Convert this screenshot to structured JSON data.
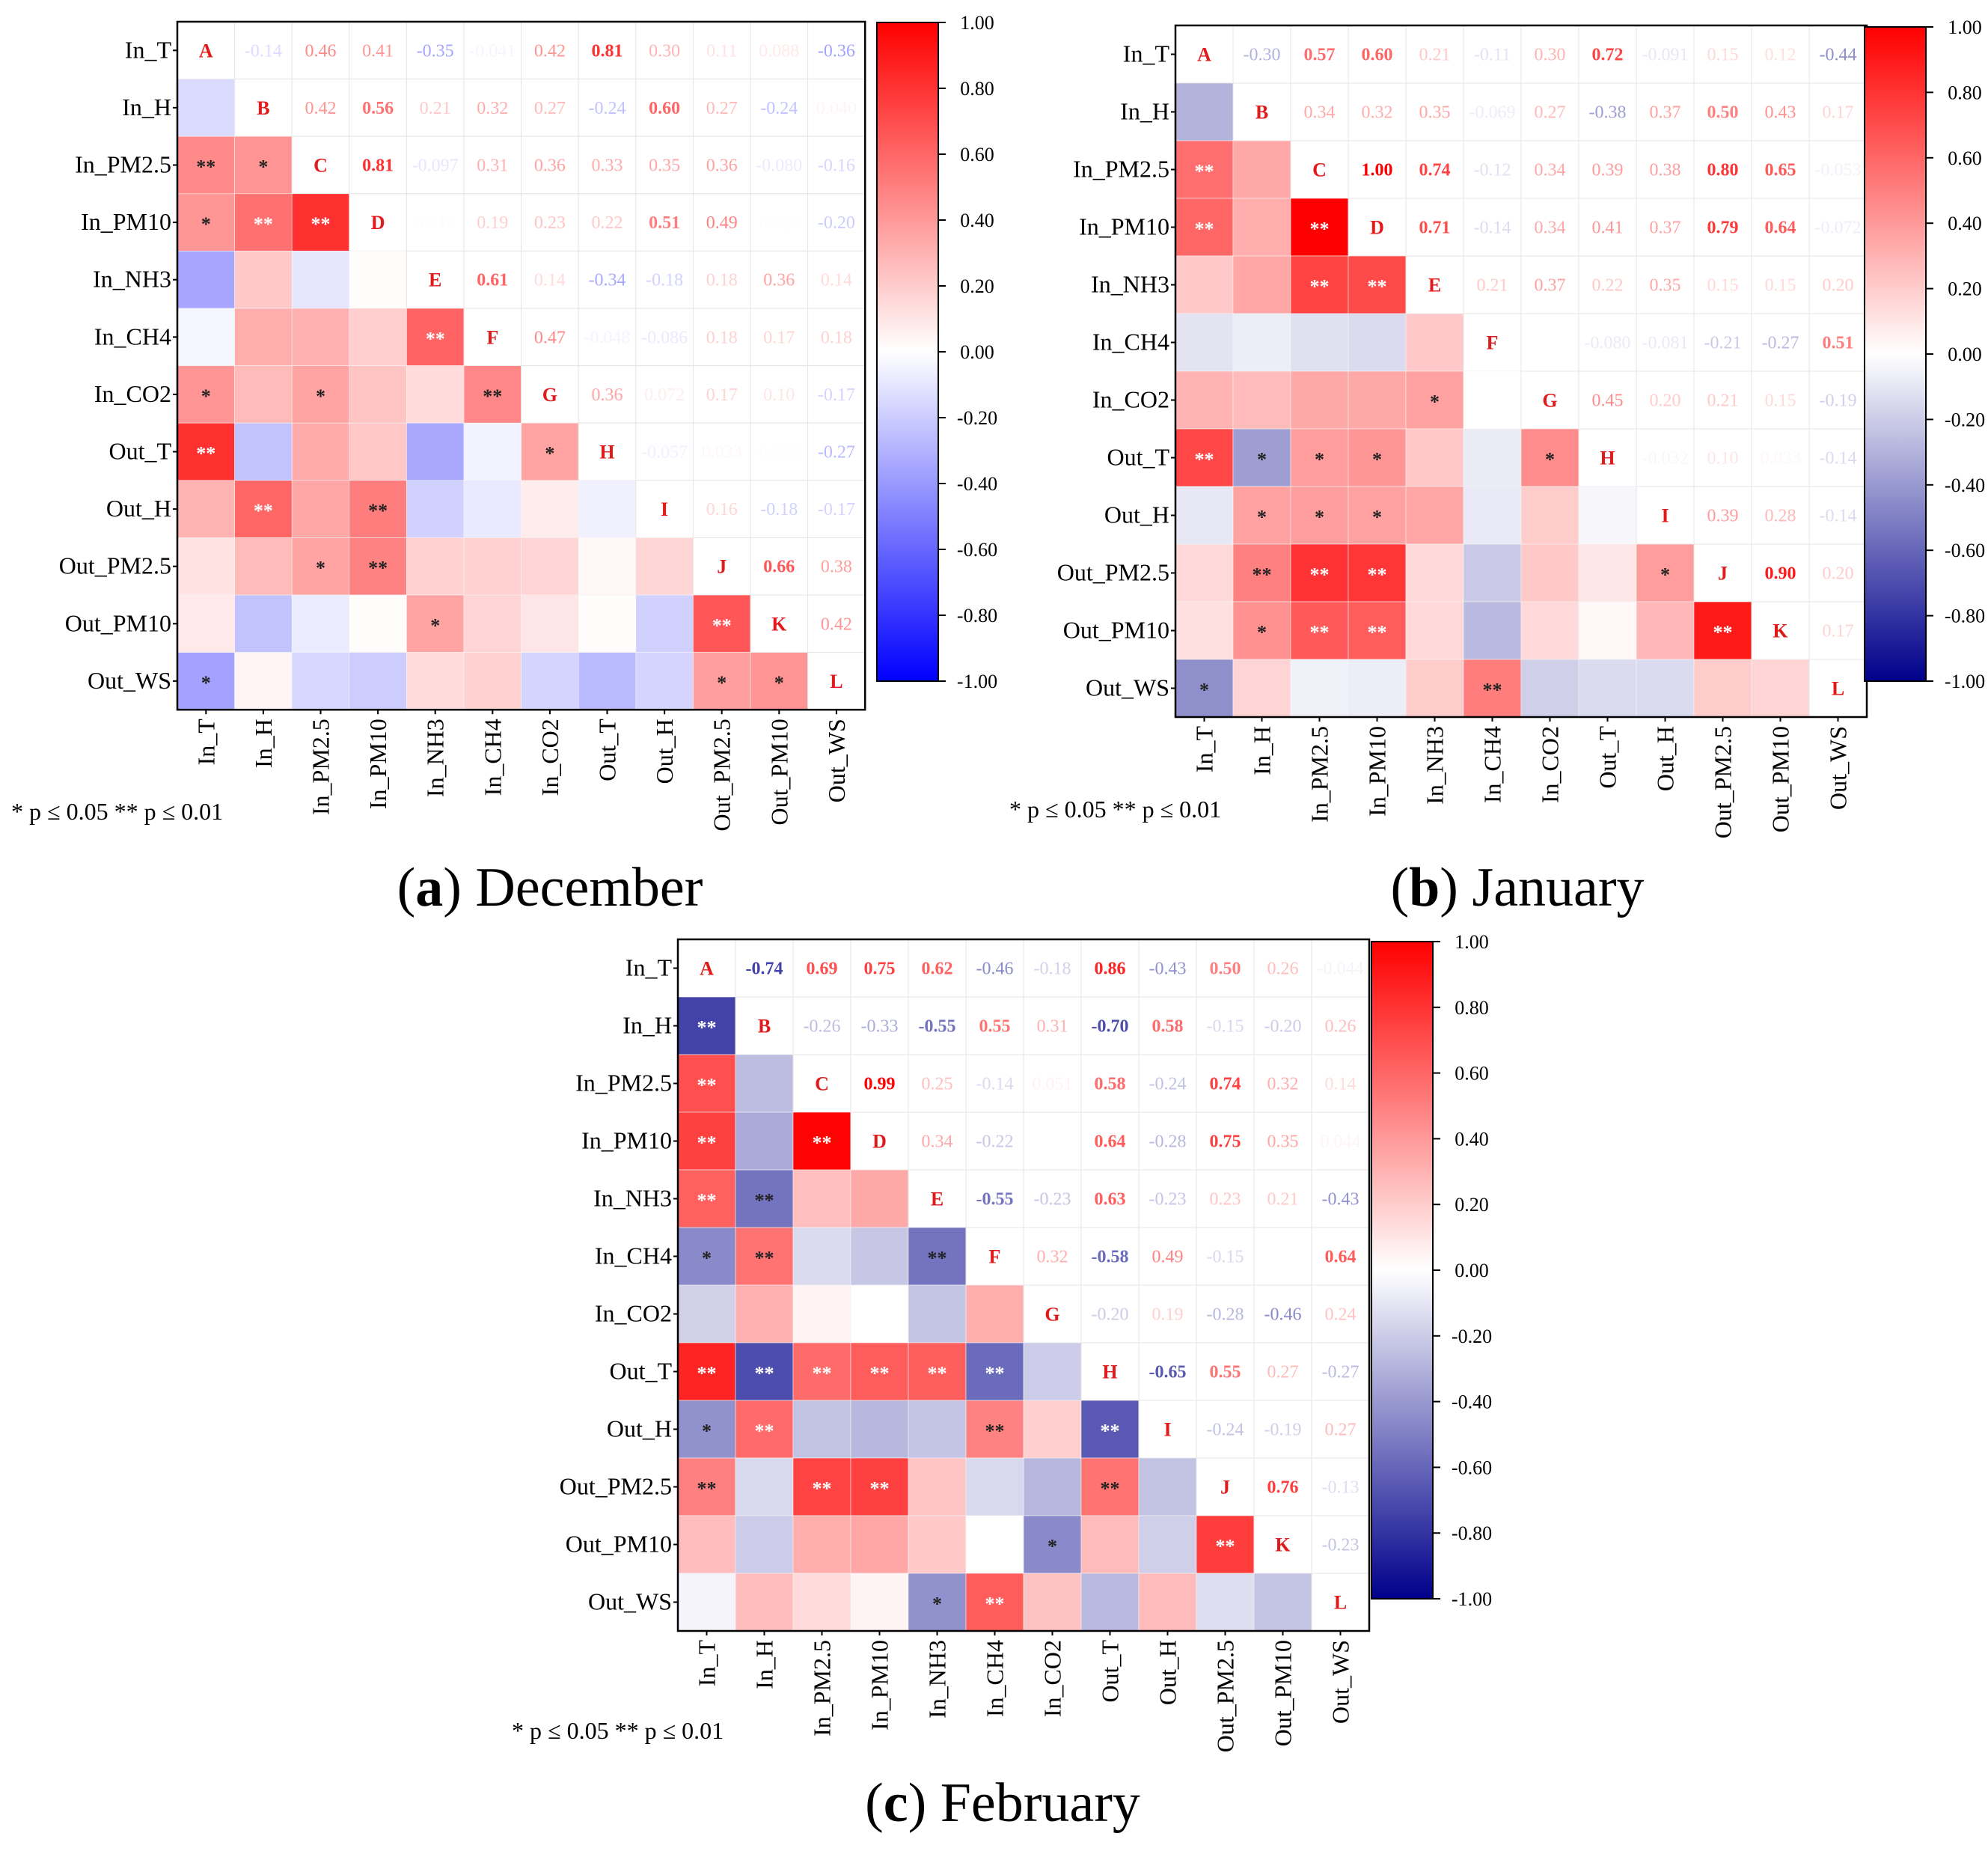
{
  "significance_note": "* p ≤ 0.05   ** p ≤ 0.01",
  "colorbar": {
    "ticks": [
      "1.00",
      "0.80",
      "0.60",
      "0.40",
      "0.20",
      "0.00",
      "-0.20",
      "-0.40",
      "-0.60",
      "-0.80",
      "-1.00"
    ],
    "colors": {
      "positive": "#ff0000",
      "zero": "#ffffff",
      "negative_a": "#0000ff",
      "negative_bc": "#00008b"
    }
  },
  "chart_data": [
    {
      "type": "heatmap",
      "caption_letter": "a",
      "caption_text": " December",
      "variables": [
        "In_T",
        "In_H",
        "In_PM2.5",
        "In_PM10",
        "In_NH3",
        "In_CH4",
        "In_CO2",
        "Out_T",
        "Out_H",
        "Out_PM2.5",
        "Out_PM10",
        "Out_WS"
      ],
      "diagonal_labels": [
        "A",
        "B",
        "C",
        "D",
        "E",
        "F",
        "G",
        "H",
        "I",
        "J",
        "K",
        "L"
      ],
      "clim": [
        -1,
        1
      ],
      "negative_color": "#0000ff",
      "upper_values": [
        [
          null,
          -0.14,
          0.46,
          0.41,
          -0.35,
          -0.041,
          0.42,
          0.81,
          0.3,
          0.11,
          0.088,
          -0.36
        ],
        [
          null,
          null,
          0.42,
          0.56,
          0.21,
          0.32,
          0.27,
          -0.24,
          0.6,
          0.27,
          -0.24,
          0.04
        ],
        [
          null,
          null,
          null,
          0.81,
          -0.097,
          0.31,
          0.36,
          0.33,
          0.35,
          0.36,
          -0.08,
          -0.16
        ],
        [
          null,
          null,
          null,
          null,
          0.01,
          0.19,
          0.23,
          0.22,
          0.51,
          0.49,
          0.01,
          -0.2
        ],
        [
          null,
          null,
          null,
          null,
          null,
          0.61,
          0.14,
          -0.34,
          -0.18,
          0.18,
          0.36,
          0.14
        ],
        [
          null,
          null,
          null,
          null,
          null,
          null,
          0.47,
          -0.048,
          -0.086,
          0.18,
          0.17,
          0.18
        ],
        [
          null,
          null,
          null,
          null,
          null,
          null,
          null,
          0.36,
          0.072,
          0.17,
          0.1,
          -0.17
        ],
        [
          null,
          null,
          null,
          null,
          null,
          null,
          null,
          null,
          -0.057,
          0.033,
          0.01,
          -0.27
        ],
        [
          null,
          null,
          null,
          null,
          null,
          null,
          null,
          null,
          null,
          0.16,
          -0.18,
          -0.17
        ],
        [
          null,
          null,
          null,
          null,
          null,
          null,
          null,
          null,
          null,
          null,
          0.66,
          0.38
        ],
        [
          null,
          null,
          null,
          null,
          null,
          null,
          null,
          null,
          null,
          null,
          null,
          0.42
        ],
        [
          null,
          null,
          null,
          null,
          null,
          null,
          null,
          null,
          null,
          null,
          null,
          null
        ]
      ],
      "lower_stars": [
        [
          "",
          "",
          "",
          "",
          "",
          "",
          "",
          "",
          "",
          "",
          "",
          ""
        ],
        [
          "",
          "",
          "",
          "",
          "",
          "",
          "",
          "",
          "",
          "",
          "",
          ""
        ],
        [
          "**",
          "*",
          "",
          "",
          "",
          "",
          "",
          "",
          "",
          "",
          "",
          ""
        ],
        [
          "*",
          "**",
          "**",
          "",
          "",
          "",
          "",
          "",
          "",
          "",
          "",
          ""
        ],
        [
          "",
          "",
          "",
          "",
          "",
          "",
          "",
          "",
          "",
          "",
          "",
          ""
        ],
        [
          "",
          "",
          "",
          "",
          "**",
          "",
          "",
          "",
          "",
          "",
          "",
          ""
        ],
        [
          "*",
          "",
          "*",
          "",
          "",
          "**",
          "",
          "",
          "",
          "",
          "",
          ""
        ],
        [
          "**",
          "",
          "",
          "",
          "",
          "",
          "*",
          "",
          "",
          "",
          "",
          ""
        ],
        [
          "",
          "**",
          "",
          "**",
          "",
          "",
          "",
          "",
          "",
          "",
          "",
          ""
        ],
        [
          "",
          "",
          "*",
          "**",
          "",
          "",
          "",
          "",
          "",
          "",
          "",
          ""
        ],
        [
          "",
          "",
          "",
          "",
          "*",
          "",
          "",
          "",
          "",
          "**",
          "",
          ""
        ],
        [
          "*",
          "",
          "",
          "",
          "",
          "",
          "",
          "",
          "",
          "*",
          "*",
          ""
        ]
      ]
    },
    {
      "type": "heatmap",
      "caption_letter": "b",
      "caption_text": " January",
      "variables": [
        "In_T",
        "In_H",
        "In_PM2.5",
        "In_PM10",
        "In_NH3",
        "In_CH4",
        "In_CO2",
        "Out_T",
        "Out_H",
        "Out_PM2.5",
        "Out_PM10",
        "Out_WS"
      ],
      "diagonal_labels": [
        "A",
        "B",
        "C",
        "D",
        "E",
        "F",
        "G",
        "H",
        "I",
        "J",
        "K",
        "L"
      ],
      "clim": [
        -1,
        1
      ],
      "negative_color": "#00008b",
      "upper_values": [
        [
          null,
          -0.3,
          0.57,
          0.6,
          0.21,
          -0.11,
          0.3,
          0.72,
          -0.091,
          0.15,
          0.12,
          -0.44
        ],
        [
          null,
          null,
          0.34,
          0.32,
          0.35,
          -0.069,
          0.27,
          -0.38,
          0.37,
          0.5,
          0.43,
          0.17
        ],
        [
          null,
          null,
          null,
          1.0,
          0.74,
          -0.12,
          0.34,
          0.39,
          0.38,
          0.8,
          0.65,
          -0.053
        ],
        [
          null,
          null,
          null,
          null,
          0.71,
          -0.14,
          0.34,
          0.41,
          0.37,
          0.79,
          0.64,
          -0.072
        ],
        [
          null,
          null,
          null,
          null,
          null,
          0.21,
          0.37,
          0.22,
          0.35,
          0.15,
          0.15,
          0.2
        ],
        [
          null,
          null,
          null,
          null,
          null,
          null,
          0.0,
          -0.08,
          -0.081,
          -0.21,
          -0.27,
          0.51
        ],
        [
          null,
          null,
          null,
          null,
          null,
          null,
          null,
          0.45,
          0.2,
          0.21,
          0.15,
          -0.19
        ],
        [
          null,
          null,
          null,
          null,
          null,
          null,
          null,
          null,
          -0.032,
          0.1,
          0.033,
          -0.14
        ],
        [
          null,
          null,
          null,
          null,
          null,
          null,
          null,
          null,
          null,
          0.39,
          0.28,
          -0.14
        ],
        [
          null,
          null,
          null,
          null,
          null,
          null,
          null,
          null,
          null,
          null,
          0.9,
          0.2
        ],
        [
          null,
          null,
          null,
          null,
          null,
          null,
          null,
          null,
          null,
          null,
          null,
          0.17
        ],
        [
          null,
          null,
          null,
          null,
          null,
          null,
          null,
          null,
          null,
          null,
          null,
          null
        ]
      ],
      "lower_stars": [
        [
          "",
          "",
          "",
          "",
          "",
          "",
          "",
          "",
          "",
          "",
          "",
          ""
        ],
        [
          "",
          "",
          "",
          "",
          "",
          "",
          "",
          "",
          "",
          "",
          "",
          ""
        ],
        [
          "**",
          "",
          "",
          "",
          "",
          "",
          "",
          "",
          "",
          "",
          "",
          ""
        ],
        [
          "**",
          "",
          "**",
          "",
          "",
          "",
          "",
          "",
          "",
          "",
          "",
          ""
        ],
        [
          "",
          "",
          "**",
          "**",
          "",
          "",
          "",
          "",
          "",
          "",
          "",
          ""
        ],
        [
          "",
          "",
          "",
          "",
          "",
          "",
          "",
          "",
          "",
          "",
          "",
          ""
        ],
        [
          "",
          "",
          "",
          "",
          "*",
          "",
          "",
          "",
          "",
          "",
          "",
          ""
        ],
        [
          "**",
          "*",
          "*",
          "*",
          "",
          "",
          "*",
          "",
          "",
          "",
          "",
          ""
        ],
        [
          "",
          "*",
          "*",
          "*",
          "",
          "",
          "",
          "",
          "",
          "",
          "",
          ""
        ],
        [
          "",
          "**",
          "**",
          "**",
          "",
          "",
          "",
          "",
          "*",
          "",
          "",
          ""
        ],
        [
          "",
          "*",
          "**",
          "**",
          "",
          "",
          "",
          "",
          "",
          "**",
          "",
          ""
        ],
        [
          "*",
          "",
          "",
          "",
          "",
          "**",
          "",
          "",
          "",
          "",
          "",
          ""
        ]
      ]
    },
    {
      "type": "heatmap",
      "caption_letter": "c",
      "caption_text": " February",
      "variables": [
        "In_T",
        "In_H",
        "In_PM2.5",
        "In_PM10",
        "In_NH3",
        "In_CH4",
        "In_CO2",
        "Out_T",
        "Out_H",
        "Out_PM2.5",
        "Out_PM10",
        "Out_WS"
      ],
      "diagonal_labels": [
        "A",
        "B",
        "C",
        "D",
        "E",
        "F",
        "G",
        "H",
        "I",
        "J",
        "K",
        "L"
      ],
      "clim": [
        -1,
        1
      ],
      "negative_color": "#00008b",
      "upper_values": [
        [
          null,
          -0.74,
          0.69,
          0.75,
          0.62,
          -0.46,
          -0.18,
          0.86,
          -0.43,
          0.5,
          0.26,
          -0.044
        ],
        [
          null,
          null,
          -0.26,
          -0.33,
          -0.55,
          0.55,
          0.31,
          -0.7,
          0.58,
          -0.15,
          -0.2,
          0.26
        ],
        [
          null,
          null,
          null,
          0.99,
          0.25,
          -0.14,
          0.051,
          0.58,
          -0.24,
          0.74,
          0.32,
          0.14
        ],
        [
          null,
          null,
          null,
          null,
          0.34,
          -0.22,
          0.0,
          0.64,
          -0.28,
          0.75,
          0.35,
          0.044
        ],
        [
          null,
          null,
          null,
          null,
          null,
          -0.55,
          -0.23,
          0.63,
          -0.23,
          0.23,
          0.21,
          -0.43
        ],
        [
          null,
          null,
          null,
          null,
          null,
          null,
          0.32,
          -0.58,
          0.49,
          -0.15,
          0.0,
          0.64
        ],
        [
          null,
          null,
          null,
          null,
          null,
          null,
          null,
          -0.2,
          0.19,
          -0.28,
          -0.46,
          0.24
        ],
        [
          null,
          null,
          null,
          null,
          null,
          null,
          null,
          null,
          -0.65,
          0.55,
          0.27,
          -0.27
        ],
        [
          null,
          null,
          null,
          null,
          null,
          null,
          null,
          null,
          null,
          -0.24,
          -0.19,
          0.27
        ],
        [
          null,
          null,
          null,
          null,
          null,
          null,
          null,
          null,
          null,
          null,
          0.76,
          -0.13
        ],
        [
          null,
          null,
          null,
          null,
          null,
          null,
          null,
          null,
          null,
          null,
          null,
          -0.23
        ],
        [
          null,
          null,
          null,
          null,
          null,
          null,
          null,
          null,
          null,
          null,
          null,
          null
        ]
      ],
      "lower_stars": [
        [
          "",
          "",
          "",
          "",
          "",
          "",
          "",
          "",
          "",
          "",
          "",
          ""
        ],
        [
          "**",
          "",
          "",
          "",
          "",
          "",
          "",
          "",
          "",
          "",
          "",
          ""
        ],
        [
          "**",
          "",
          "",
          "",
          "",
          "",
          "",
          "",
          "",
          "",
          "",
          ""
        ],
        [
          "**",
          "",
          "**",
          "",
          "",
          "",
          "",
          "",
          "",
          "",
          "",
          ""
        ],
        [
          "**",
          "**",
          "",
          "",
          "",
          "",
          "",
          "",
          "",
          "",
          "",
          ""
        ],
        [
          "*",
          "**",
          "",
          "",
          "**",
          "",
          "",
          "",
          "",
          "",
          "",
          ""
        ],
        [
          "",
          "",
          "",
          "",
          "",
          "",
          "",
          "",
          "",
          "",
          "",
          ""
        ],
        [
          "**",
          "**",
          "**",
          "**",
          "**",
          "**",
          "",
          "",
          "",
          "",
          "",
          ""
        ],
        [
          "*",
          "**",
          "",
          "",
          "",
          "**",
          "",
          "**",
          "",
          "",
          "",
          ""
        ],
        [
          "**",
          "",
          "**",
          "**",
          "",
          "",
          "",
          "**",
          "",
          "",
          "",
          ""
        ],
        [
          "",
          "",
          "",
          "",
          "",
          "",
          "*",
          "",
          "",
          "**",
          "",
          ""
        ],
        [
          "",
          "",
          "",
          "",
          "*",
          "**",
          "",
          "",
          "",
          "",
          "",
          ""
        ]
      ]
    }
  ]
}
